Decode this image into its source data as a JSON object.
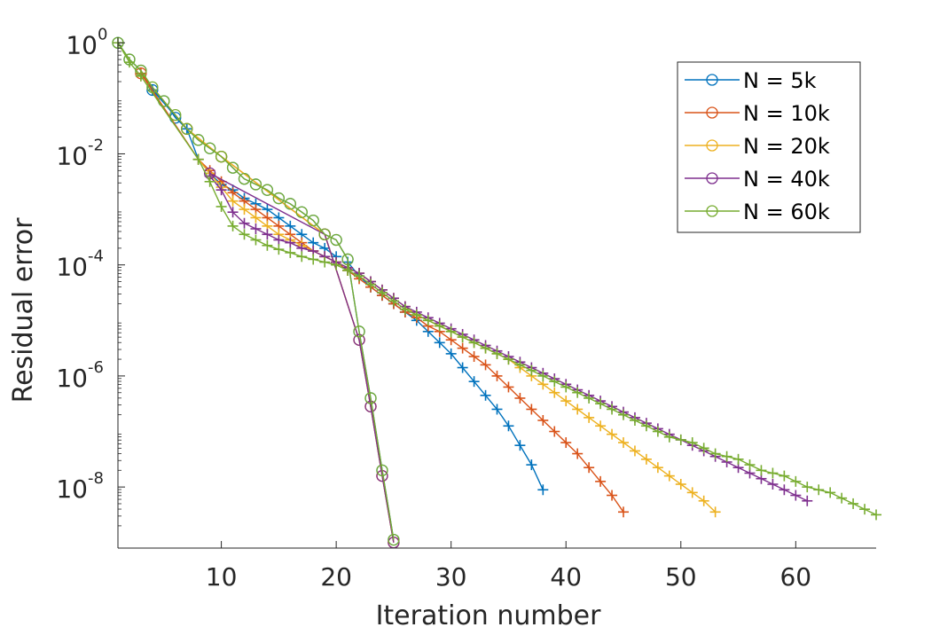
{
  "chart_data": {
    "type": "line",
    "title": "",
    "xlabel": "Iteration number",
    "ylabel": "Residual error",
    "xlim": [
      1,
      67
    ],
    "ylim_log10": [
      -9.1,
      0.1
    ],
    "y_scale": "log",
    "grid": false,
    "legend_position": "top-right",
    "x_ticks": [
      10,
      20,
      30,
      40,
      50,
      60
    ],
    "x_tick_labels": [
      "10",
      "20",
      "30",
      "40",
      "50",
      "60"
    ],
    "y_tick_exponents": [
      0,
      -2,
      -4,
      -6,
      -8
    ],
    "y_tick_base": "10",
    "y_tick_exp_labels": [
      "0",
      "-2",
      "-4",
      "-6",
      "-8"
    ],
    "series": [
      {
        "name": "N = 5k",
        "color": "#0072BD",
        "circle": {
          "x": [
            1,
            2,
            3,
            4,
            5,
            6,
            7,
            8,
            9,
            10,
            11,
            12,
            13,
            14,
            15,
            16,
            17,
            18,
            19,
            20,
            21,
            22,
            23,
            24,
            25
          ],
          "log10y": [
            0,
            -0.3,
            -0.5,
            -0.85,
            -1.05,
            -1.35,
            -1.55,
            -1.75,
            -1.9,
            -2.05,
            -2.25,
            -2.45,
            -2.55,
            -2.65,
            -2.8,
            -2.9,
            -3.05,
            -3.2,
            -3.45,
            -3.55,
            -3.9,
            -5.2,
            -6.4,
            -7.7,
            -8.95
          ]
        },
        "plus": {
          "x": [
            21,
            22,
            23,
            24,
            25,
            26,
            27,
            28,
            29,
            30,
            31,
            32,
            33,
            34,
            35,
            36,
            37,
            38
          ],
          "log10y": [
            -3.95,
            -4.2,
            -4.4,
            -4.55,
            -4.7,
            -4.85,
            -5.0,
            -5.2,
            -5.4,
            -5.6,
            -5.85,
            -6.1,
            -6.35,
            -6.6,
            -6.9,
            -7.25,
            -7.6,
            -8.05
          ]
        },
        "plus_lead": {
          "x": [
            4,
            7,
            8,
            9,
            10,
            11,
            12,
            13,
            14,
            15,
            16,
            17,
            18,
            19,
            20
          ],
          "log10y": [
            -0.85,
            -1.55,
            -2.1,
            -2.35,
            -2.55,
            -2.65,
            -2.8,
            -2.9,
            -3.0,
            -3.15,
            -3.3,
            -3.45,
            -3.6,
            -3.7,
            -3.85
          ]
        }
      },
      {
        "name": "N = 10k",
        "color": "#D95319",
        "circle": {
          "x": [
            3,
            7,
            10,
            19,
            22,
            23,
            24,
            25
          ],
          "log10y": [
            -0.55,
            -1.55,
            -2.05,
            -3.45,
            -5.35,
            -6.55,
            -7.8,
            -9.0
          ]
        },
        "plus": {
          "x": [
            3,
            8,
            9,
            10,
            11,
            12,
            13,
            14,
            15,
            16,
            17,
            18,
            19,
            20,
            21,
            22,
            23,
            24,
            25,
            26,
            27,
            28,
            29,
            30,
            31,
            32,
            33,
            34,
            35,
            36,
            37,
            38,
            39,
            40,
            41,
            42,
            43,
            44,
            45
          ],
          "log10y": [
            -0.55,
            -2.1,
            -2.3,
            -2.5,
            -2.7,
            -2.85,
            -3.0,
            -3.15,
            -3.3,
            -3.45,
            -3.6,
            -3.75,
            -3.85,
            -3.95,
            -4.1,
            -4.25,
            -4.4,
            -4.55,
            -4.7,
            -4.85,
            -4.95,
            -5.1,
            -5.2,
            -5.35,
            -5.5,
            -5.65,
            -5.8,
            -6.0,
            -6.2,
            -6.4,
            -6.6,
            -6.8,
            -7.0,
            -7.2,
            -7.4,
            -7.65,
            -7.9,
            -8.15,
            -8.45
          ]
        }
      },
      {
        "name": "N = 20k",
        "color": "#EDB120",
        "circle": {
          "x": [
            7,
            10,
            19,
            22,
            23,
            24,
            25
          ],
          "log10y": [
            -1.55,
            -2.05,
            -3.45,
            -5.35,
            -6.55,
            -7.8,
            -9.0
          ]
        },
        "plus": {
          "x": [
            8,
            9,
            10,
            11,
            12,
            13,
            14,
            15,
            16,
            17,
            18,
            19,
            20,
            21,
            22,
            23,
            24,
            25,
            26,
            27,
            28,
            29,
            30,
            31,
            32,
            33,
            34,
            35,
            36,
            37,
            38,
            39,
            40,
            41,
            42,
            43,
            44,
            45,
            46,
            47,
            48,
            49,
            50,
            51,
            52,
            53
          ],
          "log10y": [
            -2.1,
            -2.35,
            -2.6,
            -2.85,
            -3.0,
            -3.15,
            -3.3,
            -3.45,
            -3.55,
            -3.65,
            -3.75,
            -3.85,
            -3.95,
            -4.05,
            -4.15,
            -4.3,
            -4.45,
            -4.6,
            -4.75,
            -4.9,
            -5.0,
            -5.1,
            -5.2,
            -5.3,
            -5.4,
            -5.5,
            -5.6,
            -5.7,
            -5.85,
            -6.0,
            -6.15,
            -6.3,
            -6.45,
            -6.6,
            -6.75,
            -6.9,
            -7.05,
            -7.2,
            -7.35,
            -7.5,
            -7.65,
            -7.8,
            -7.95,
            -8.1,
            -8.25,
            -8.45
          ]
        }
      },
      {
        "name": "N = 40k",
        "color": "#7E2F8E",
        "circle": {
          "x": [
            9,
            19,
            22,
            23,
            24,
            25
          ],
          "log10y": [
            -2.35,
            -3.45,
            -5.35,
            -6.55,
            -7.8,
            -9.0
          ]
        },
        "plus": {
          "x": [
            9,
            10,
            11,
            12,
            13,
            14,
            15,
            16,
            17,
            18,
            19,
            20,
            21,
            22,
            23,
            24,
            25,
            26,
            27,
            28,
            29,
            30,
            31,
            32,
            33,
            34,
            35,
            36,
            37,
            38,
            39,
            40,
            41,
            42,
            43,
            44,
            45,
            46,
            47,
            48,
            49,
            50,
            51,
            52,
            53,
            54,
            55,
            56,
            57,
            58,
            59,
            60,
            61
          ],
          "log10y": [
            -2.4,
            -2.65,
            -3.05,
            -3.25,
            -3.35,
            -3.45,
            -3.55,
            -3.6,
            -3.7,
            -3.75,
            -3.85,
            -3.95,
            -4.05,
            -4.15,
            -4.3,
            -4.45,
            -4.6,
            -4.75,
            -4.85,
            -4.95,
            -5.05,
            -5.15,
            -5.25,
            -5.35,
            -5.45,
            -5.55,
            -5.65,
            -5.75,
            -5.85,
            -5.95,
            -6.05,
            -6.15,
            -6.25,
            -6.35,
            -6.45,
            -6.55,
            -6.65,
            -6.75,
            -6.85,
            -6.95,
            -7.05,
            -7.15,
            -7.25,
            -7.35,
            -7.45,
            -7.55,
            -7.65,
            -7.75,
            -7.85,
            -7.95,
            -8.05,
            -8.15,
            -8.25
          ]
        }
      },
      {
        "name": "N = 60k",
        "color": "#77AC30",
        "circle": {
          "x": [
            1,
            2,
            3,
            4,
            5,
            6,
            7,
            8,
            9,
            10,
            11,
            12,
            13,
            14,
            15,
            16,
            17,
            18,
            19,
            20,
            21,
            22,
            23,
            24,
            25
          ],
          "log10y": [
            0,
            -0.3,
            -0.5,
            -0.8,
            -1.05,
            -1.3,
            -1.55,
            -1.75,
            -1.9,
            -2.05,
            -2.25,
            -2.45,
            -2.55,
            -2.65,
            -2.8,
            -2.9,
            -3.05,
            -3.2,
            -3.45,
            -3.55,
            -3.9,
            -5.2,
            -6.4,
            -7.7,
            -8.95
          ]
        },
        "plus": {
          "x": [
            1,
            2,
            3,
            8,
            9,
            10,
            11,
            12,
            13,
            14,
            15,
            16,
            17,
            18,
            19,
            20,
            21,
            22,
            23,
            24,
            25,
            26,
            27,
            28,
            29,
            30,
            31,
            32,
            33,
            34,
            35,
            36,
            37,
            38,
            39,
            40,
            41,
            42,
            43,
            44,
            45,
            46,
            47,
            48,
            49,
            50,
            51,
            52,
            53,
            54,
            55,
            56,
            57,
            58,
            59,
            60,
            61,
            62,
            63,
            64,
            65,
            66,
            67
          ],
          "log10y": [
            0,
            -0.35,
            -0.6,
            -2.1,
            -2.5,
            -2.95,
            -3.3,
            -3.45,
            -3.55,
            -3.65,
            -3.72,
            -3.78,
            -3.85,
            -3.9,
            -3.95,
            -4.0,
            -4.1,
            -4.2,
            -4.35,
            -4.5,
            -4.65,
            -4.8,
            -4.9,
            -5.0,
            -5.1,
            -5.2,
            -5.3,
            -5.4,
            -5.5,
            -5.6,
            -5.7,
            -5.8,
            -5.9,
            -6.0,
            -6.1,
            -6.2,
            -6.3,
            -6.4,
            -6.5,
            -6.6,
            -6.7,
            -6.8,
            -6.9,
            -7.0,
            -7.1,
            -7.15,
            -7.2,
            -7.3,
            -7.4,
            -7.45,
            -7.5,
            -7.6,
            -7.7,
            -7.75,
            -7.8,
            -7.9,
            -8.0,
            -8.05,
            -8.1,
            -8.2,
            -8.3,
            -8.4,
            -8.5
          ]
        }
      }
    ]
  }
}
